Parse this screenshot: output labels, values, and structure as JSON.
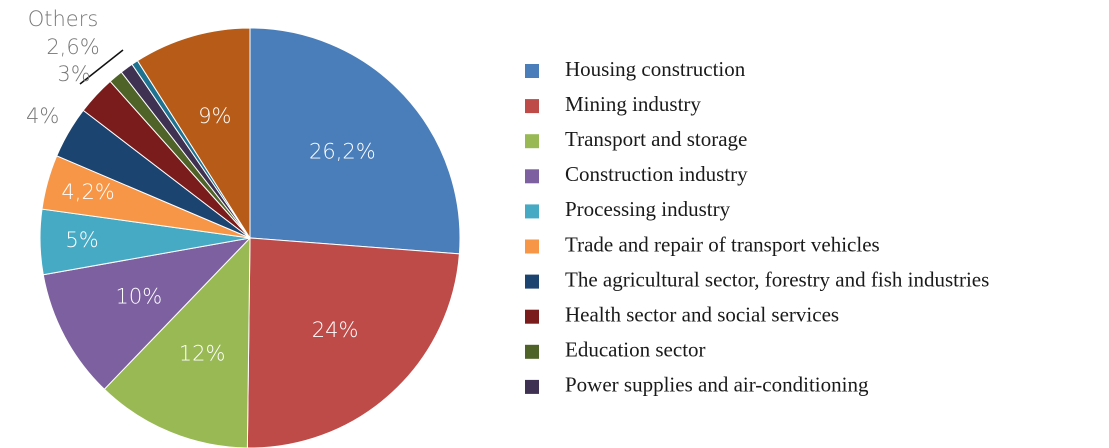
{
  "chart_data": {
    "type": "pie",
    "categories": [
      "Housing construction",
      "Mining industry",
      "Transport and storage",
      "Construction industry",
      "Processing industry",
      "Trade and repair of transport vehicles",
      "The agricultural sector, forestry and fish industries",
      "Health sector and social services",
      "Education sector",
      "Power supplies and air-conditioning",
      null,
      null
    ],
    "values": [
      26.2,
      24,
      12,
      10,
      5,
      4.2,
      4,
      3,
      1.1,
      1.0,
      0.5,
      9
    ],
    "value_labels": [
      "26,2%",
      "24%",
      "12%",
      "10%",
      "5%",
      "4,2%",
      "4%",
      "3%",
      null,
      null,
      null,
      "9%"
    ],
    "colors": [
      "#4a7ebb",
      "#be4b48",
      "#98b954",
      "#7d60a0",
      "#46aac4",
      "#f79646",
      "#1b4470",
      "#7a1c1c",
      "#4f6228",
      "#3f3151",
      "#1f7391",
      "#b65b18"
    ],
    "annotations": [
      {
        "text": "Others",
        "value": 2.6,
        "label": "2,6%"
      }
    ],
    "legend": "right"
  }
}
